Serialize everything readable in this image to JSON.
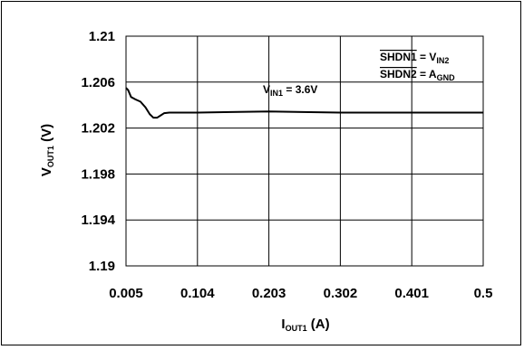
{
  "chart_data": {
    "type": "line",
    "xlabel": {
      "main": "I",
      "sub": "OUT1",
      "unit": " (A)"
    },
    "ylabel": {
      "main": "V",
      "sub": "OUT1",
      "unit": " (V)"
    },
    "xlim": [
      0.005,
      0.5
    ],
    "ylim": [
      1.19,
      1.21
    ],
    "x_ticks": [
      0.005,
      0.104,
      0.203,
      0.302,
      0.401,
      0.5
    ],
    "x_tick_labels": [
      "0.005",
      "0.104",
      "0.203",
      "0.302",
      "0.401",
      "0.5"
    ],
    "y_ticks": [
      1.19,
      1.194,
      1.198,
      1.202,
      1.206,
      1.21
    ],
    "y_tick_labels": [
      "1.19",
      "1.194",
      "1.198",
      "1.202",
      "1.206",
      "1.21"
    ],
    "grid": true,
    "series": [
      {
        "x": [
          0.005,
          0.008,
          0.012,
          0.018,
          0.025,
          0.032,
          0.038,
          0.043,
          0.048,
          0.053,
          0.058,
          0.065,
          0.072,
          0.08,
          0.09,
          0.104,
          0.15,
          0.203,
          0.25,
          0.302,
          0.35,
          0.401,
          0.45,
          0.5
        ],
        "y": [
          1.2055,
          1.2053,
          1.2047,
          1.2045,
          1.2043,
          1.2038,
          1.2032,
          1.2029,
          1.2029,
          1.2031,
          1.2033,
          1.20335,
          1.20335,
          1.20335,
          1.20335,
          1.20335,
          1.2034,
          1.20345,
          1.2034,
          1.20335,
          1.20335,
          1.20335,
          1.20335,
          1.20335
        ],
        "color": "#000000"
      }
    ],
    "annotations": [
      {
        "text": "V",
        "sub": "IN1",
        "suffix": " = 3.6V"
      },
      {
        "overline": "SHDN1",
        "text": " = V",
        "sub": "IN2"
      },
      {
        "overline": "SHDN2",
        "text": " = A",
        "sub": "GND"
      }
    ]
  }
}
